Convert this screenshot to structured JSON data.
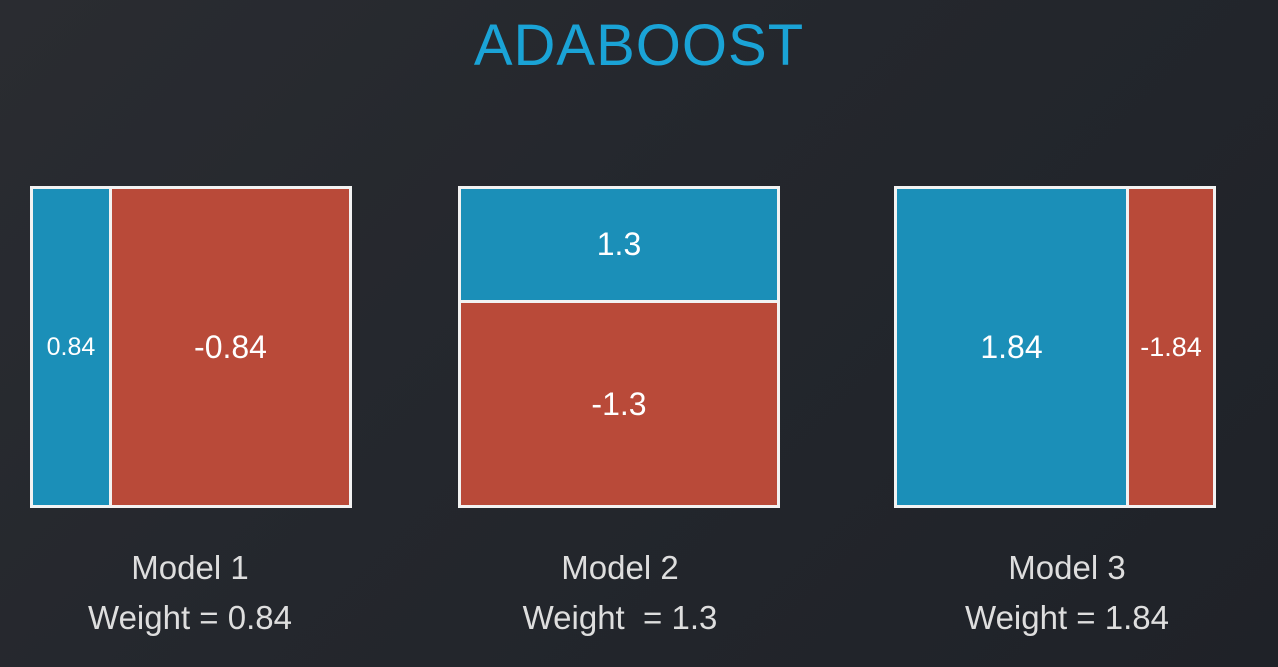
{
  "title": "ADABOOST",
  "models": [
    {
      "name": "Model 1",
      "weight_text": "Weight = 0.84",
      "regions": [
        {
          "value": "0.84",
          "class": "blue"
        },
        {
          "value": "-0.84",
          "class": "red"
        }
      ]
    },
    {
      "name": "Model 2",
      "weight_text": "Weight  = 1.3",
      "regions": [
        {
          "value": "1.3",
          "class": "blue"
        },
        {
          "value": "-1.3",
          "class": "red"
        }
      ]
    },
    {
      "name": "Model 3",
      "weight_text": "Weight = 1.84",
      "regions": [
        {
          "value": "1.84",
          "class": "blue"
        },
        {
          "value": "-1.84",
          "class": "red"
        }
      ]
    }
  ],
  "colors": {
    "title": "#1aa3d6",
    "positive_region": "#1b8fb8",
    "negative_region": "#b94a39",
    "box_border": "#f2f2f2",
    "background": "#25282d"
  }
}
